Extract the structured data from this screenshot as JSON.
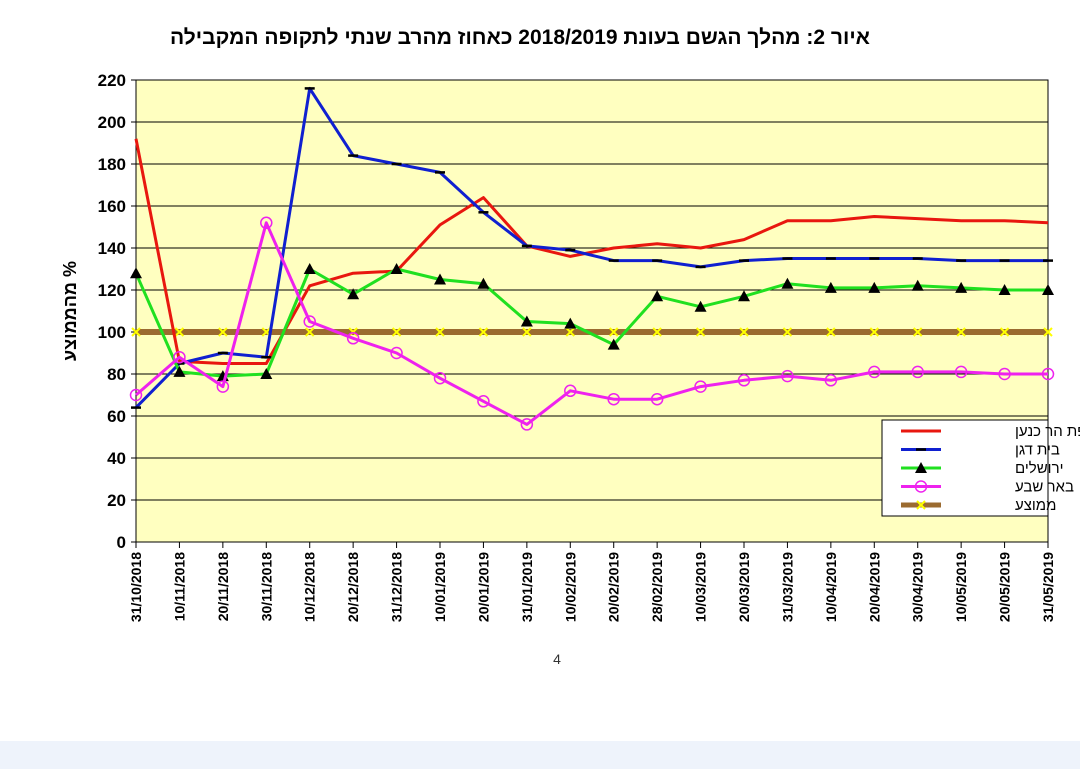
{
  "page": {
    "number": "4"
  },
  "colors": {
    "plot_background": "#ffffc0",
    "zefat": "#e8170f",
    "bet_dagan": "#1020d0",
    "jerusalem": "#20e020",
    "beer_sheva": "#ee22ee",
    "average": "#9b6b30",
    "average_marker": "#ffff00"
  },
  "chart_data": {
    "type": "line",
    "title": "איור 2: מהלך הגשם בעונת 2018/2019 כאחוז מהרב שנתי לתקופה המקבילה",
    "ylabel": "% מהממוצע",
    "xlabel": "",
    "ylim": [
      0,
      220
    ],
    "yticks": [
      0,
      20,
      40,
      60,
      80,
      100,
      120,
      140,
      160,
      180,
      200,
      220
    ],
    "grid": true,
    "legend_position": "right",
    "x": [
      "31/10/2018",
      "10/11/2018",
      "20/11/2018",
      "30/11/2018",
      "10/12/2018",
      "20/12/2018",
      "31/12/2018",
      "10/01/2019",
      "20/01/2019",
      "31/01/2019",
      "10/02/2019",
      "20/02/2019",
      "28/02/2019",
      "10/03/2019",
      "20/03/2019",
      "31/03/2019",
      "10/04/2019",
      "20/04/2019",
      "30/04/2019",
      "10/05/2019",
      "20/05/2019",
      "31/05/2019"
    ],
    "series": [
      {
        "name": "צפת הר כנען",
        "color_key": "zefat",
        "marker": "none",
        "values": [
          192,
          86,
          85,
          85,
          122,
          128,
          129,
          151,
          164,
          141,
          136,
          140,
          142,
          140,
          144,
          153,
          153,
          155,
          154,
          153,
          153,
          152
        ]
      },
      {
        "name": "בית דגן",
        "color_key": "bet_dagan",
        "marker": "dash",
        "values": [
          64,
          85,
          90,
          88,
          216,
          184,
          180,
          176,
          157,
          141,
          139,
          134,
          134,
          131,
          134,
          135,
          135,
          135,
          135,
          134,
          134,
          134
        ]
      },
      {
        "name": "ירושלים",
        "color_key": "jerusalem",
        "marker": "triangle",
        "values": [
          128,
          81,
          79,
          80,
          130,
          118,
          130,
          125,
          123,
          105,
          104,
          94,
          117,
          112,
          117,
          123,
          121,
          121,
          122,
          121,
          120,
          120
        ]
      },
      {
        "name": "באר שבע",
        "color_key": "beer_sheva",
        "marker": "circle",
        "values": [
          70,
          88,
          74,
          152,
          105,
          97,
          90,
          78,
          67,
          56,
          72,
          68,
          68,
          74,
          77,
          79,
          77,
          81,
          81,
          81,
          80,
          80
        ]
      },
      {
        "name": "ממוצע",
        "color_key": "average",
        "marker": "x",
        "values": [
          100,
          100,
          100,
          100,
          100,
          100,
          100,
          100,
          100,
          100,
          100,
          100,
          100,
          100,
          100,
          100,
          100,
          100,
          100,
          100,
          100,
          100
        ]
      }
    ]
  }
}
